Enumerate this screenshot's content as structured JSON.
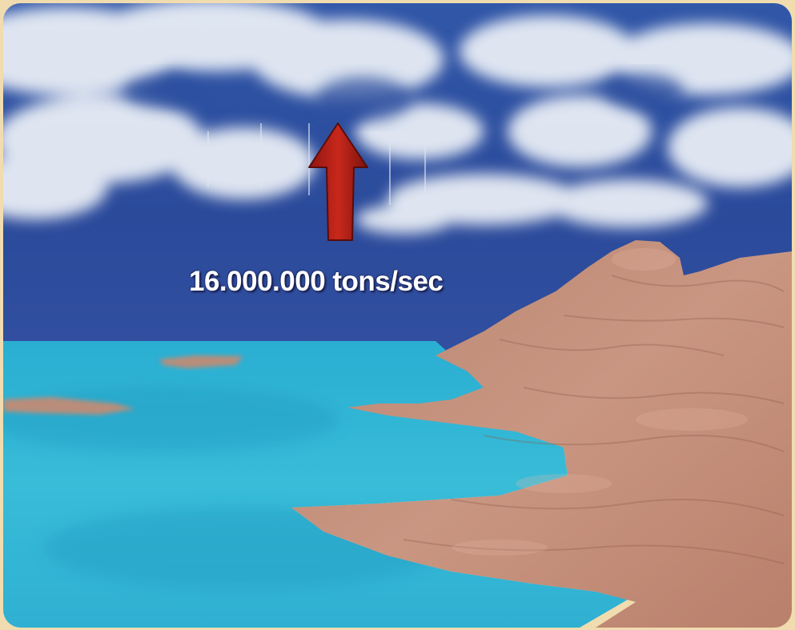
{
  "caption": {
    "rate_text": "16.000.000 tons/sec"
  },
  "icons": {
    "arrow": "up-arrow-icon"
  },
  "colors": {
    "sky": "#2a4fa0",
    "cloud": "#eef2f8",
    "water": "#33b8d6",
    "land": "#c8937e",
    "arrow": "#b22016",
    "frame": "#f1dcb0"
  }
}
